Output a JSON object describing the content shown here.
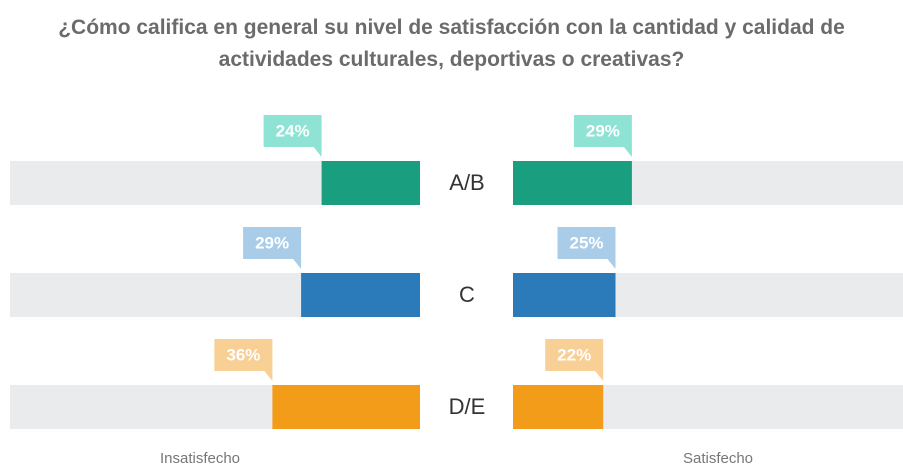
{
  "chart_data": {
    "type": "diverging_bar",
    "title": "¿Cómo califica en general su nivel de satisfacción con la cantidad y calidad de actividades culturales, deportivas o creativas?",
    "categories": [
      "A/B",
      "C",
      "D/E"
    ],
    "series": [
      {
        "name": "Insatisfecho",
        "side": "left",
        "values": [
          24,
          29,
          36
        ],
        "value_labels": [
          "24%",
          "29%",
          "36%"
        ]
      },
      {
        "name": "Satisfecho",
        "side": "right",
        "values": [
          29,
          25,
          22
        ],
        "value_labels": [
          "29%",
          "25%",
          "22%"
        ]
      }
    ],
    "colors": [
      "#1a9e80",
      "#2b7bba",
      "#f39c1a"
    ],
    "label_colors": [
      "#8fe3d5",
      "#a9cde8",
      "#f8cf94"
    ],
    "track_color": "#e9ebec",
    "xlim": [
      0,
      100
    ]
  }
}
